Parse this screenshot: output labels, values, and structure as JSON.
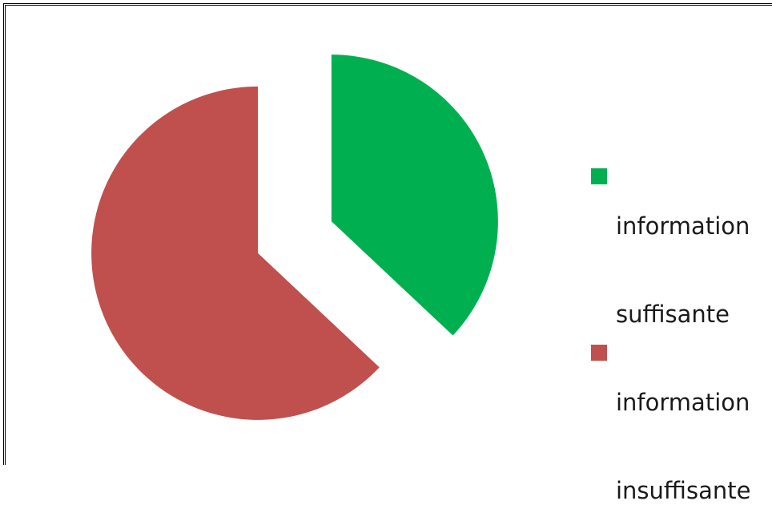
{
  "chart_data": {
    "type": "pie",
    "title": "",
    "slices": [
      {
        "label": "information suffisante",
        "value": 37,
        "color": "#00b050",
        "exploded": true
      },
      {
        "label": "information insuffisante",
        "value": 63,
        "color": "#c0504d",
        "exploded": true
      }
    ],
    "legend_position": "right"
  },
  "legend": {
    "items": [
      {
        "line1": "information",
        "line2": "suffisante"
      },
      {
        "line1": "information",
        "line2": "insuffisante"
      }
    ]
  }
}
